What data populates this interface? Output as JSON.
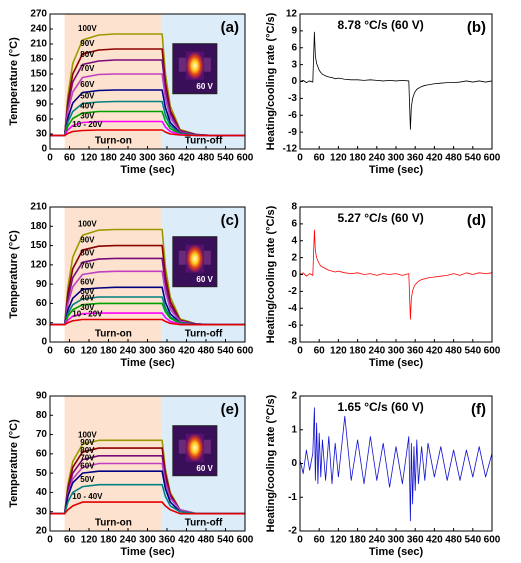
{
  "chart_data": [
    {
      "type": "line",
      "panel_label": "(a)",
      "xlabel": "Time (sec)",
      "ylabel": "Temperature (°C)",
      "xlim": [
        0,
        600
      ],
      "xticks": [
        0,
        60,
        120,
        180,
        240,
        300,
        360,
        420,
        480,
        540,
        600
      ],
      "ylim": [
        0,
        270
      ],
      "yticks": [
        0,
        30,
        60,
        90,
        120,
        150,
        180,
        210,
        240,
        270
      ],
      "regions": [
        {
          "label": "Turn-on",
          "from": 45,
          "to": 345,
          "color": "#fde3cf"
        },
        {
          "label": "Turn-off",
          "from": 345,
          "to": 600,
          "color": "#dcecf8"
        }
      ],
      "inset_label": "60 V",
      "x": [
        0,
        45,
        55,
        70,
        100,
        150,
        200,
        300,
        345,
        355,
        370,
        400,
        450,
        500,
        600
      ],
      "series": [
        {
          "name": "100V",
          "color": "#9a9a00",
          "values": [
            27,
            27,
            106,
            171,
            218,
            228,
            230,
            230,
            230,
            151,
            86,
            39,
            29,
            27,
            27
          ]
        },
        {
          "name": "90V",
          "color": "#8b0000",
          "values": [
            27,
            27,
            94,
            150,
            190,
            198,
            200,
            200,
            200,
            133,
            77,
            37,
            29,
            27,
            27
          ]
        },
        {
          "name": "80V",
          "color": "#7a0a7a",
          "values": [
            27,
            27,
            86,
            134,
            169,
            176,
            178,
            178,
            178,
            119,
            71,
            36,
            29,
            27,
            27
          ]
        },
        {
          "name": "70V",
          "color": "#c040c0",
          "values": [
            27,
            27,
            75,
            114,
            143,
            149,
            150,
            150,
            150,
            102,
            63,
            34,
            28,
            27,
            27
          ]
        },
        {
          "name": "60V",
          "color": "#000080",
          "values": [
            27,
            27,
            62,
            92,
            113,
            117,
            118,
            118,
            118,
            83,
            53,
            32,
            28,
            27,
            27
          ]
        },
        {
          "name": "50V",
          "color": "#008080",
          "values": [
            27,
            27,
            54,
            75,
            91,
            94,
            95,
            95,
            95,
            68,
            47,
            31,
            28,
            27,
            27
          ]
        },
        {
          "name": "40V",
          "color": "#00a000",
          "values": [
            27,
            27,
            46,
            61,
            72,
            75,
            75,
            75,
            75,
            56,
            41,
            30,
            27,
            27,
            27
          ]
        },
        {
          "name": "30V",
          "color": "#ff00ff",
          "values": [
            27,
            27,
            38,
            47,
            53,
            55,
            55,
            55,
            55,
            44,
            35,
            29,
            27,
            27,
            27
          ]
        },
        {
          "name": "10 - 20V",
          "color": "#e00000",
          "values": [
            27,
            27,
            31,
            35,
            37,
            38,
            38,
            38,
            38,
            34,
            30,
            28,
            27,
            27,
            27
          ]
        }
      ]
    },
    {
      "type": "line",
      "panel_label": "(b)",
      "xlabel": "Time (sec)",
      "ylabel": "Heating/cooling rate (°C/s)",
      "annotation": "8.78 °C/s (60 V)",
      "xlim": [
        0,
        600
      ],
      "xticks": [
        0,
        60,
        120,
        180,
        240,
        300,
        360,
        420,
        480,
        540,
        600
      ],
      "ylim": [
        -12,
        12
      ],
      "yticks": [
        -12,
        -9,
        -6,
        -3,
        0,
        3,
        6,
        9,
        12
      ],
      "x": [
        0,
        10,
        20,
        30,
        40,
        45,
        48,
        52,
        56,
        60,
        65,
        70,
        80,
        90,
        100,
        110,
        120,
        140,
        160,
        180,
        200,
        220,
        240,
        260,
        280,
        300,
        320,
        340,
        345,
        348,
        352,
        356,
        360,
        365,
        370,
        380,
        390,
        400,
        420,
        440,
        460,
        480,
        500,
        520,
        540,
        560,
        580,
        600
      ],
      "series": [
        {
          "color": "#000000",
          "values": [
            0,
            0.2,
            -0.2,
            0.1,
            -0.1,
            8.78,
            4.5,
            3.2,
            2.6,
            2.0,
            1.6,
            1.3,
            1.0,
            0.8,
            0.7,
            0.5,
            0.6,
            0.4,
            0.3,
            0.3,
            0.2,
            0.3,
            0.2,
            0.1,
            0.2,
            0.1,
            0.2,
            0.1,
            -8.5,
            -4.5,
            -3.0,
            -2.3,
            -1.8,
            -1.4,
            -1.2,
            -0.9,
            -0.7,
            -0.6,
            -0.4,
            -0.3,
            -0.2,
            -0.2,
            -0.1,
            0.1,
            -0.1,
            0.1,
            -0.1,
            0.1
          ]
        }
      ]
    },
    {
      "type": "line",
      "panel_label": "(c)",
      "xlabel": "Time (sec)",
      "ylabel": "Temperature (°C)",
      "xlim": [
        0,
        600
      ],
      "xticks": [
        0,
        60,
        120,
        180,
        240,
        300,
        360,
        420,
        480,
        540,
        600
      ],
      "ylim": [
        0,
        210
      ],
      "yticks": [
        0,
        30,
        60,
        90,
        120,
        150,
        180,
        210
      ],
      "regions": [
        {
          "label": "Turn-on",
          "from": 45,
          "to": 345,
          "color": "#fde3cf"
        },
        {
          "label": "Turn-off",
          "from": 345,
          "to": 600,
          "color": "#dcecf8"
        }
      ],
      "inset_label": "60 V",
      "x": [
        0,
        45,
        55,
        70,
        100,
        150,
        200,
        300,
        345,
        355,
        370,
        400,
        450,
        500,
        600
      ],
      "series": [
        {
          "name": "100V",
          "color": "#9a9a00",
          "values": [
            27,
            27,
            85,
            132,
            166,
            174,
            175,
            175,
            175,
            117,
            70,
            36,
            28,
            27,
            27
          ]
        },
        {
          "name": "90V",
          "color": "#8b0000",
          "values": [
            27,
            27,
            75,
            114,
            143,
            149,
            150,
            150,
            150,
            102,
            63,
            34,
            28,
            27,
            27
          ]
        },
        {
          "name": "80V",
          "color": "#7a0a7a",
          "values": [
            27,
            27,
            67,
            100,
            124,
            129,
            130,
            130,
            130,
            90,
            57,
            33,
            28,
            27,
            27
          ]
        },
        {
          "name": "70V",
          "color": "#c040c0",
          "values": [
            27,
            27,
            59,
            86,
            105,
            109,
            110,
            110,
            110,
            78,
            51,
            32,
            28,
            27,
            27
          ]
        },
        {
          "name": "60V",
          "color": "#000080",
          "values": [
            27,
            27,
            50,
            68,
            82,
            84,
            85,
            85,
            85,
            62,
            44,
            30,
            28,
            27,
            27
          ]
        },
        {
          "name": "50V",
          "color": "#008080",
          "values": [
            27,
            27,
            44,
            58,
            67,
            70,
            70,
            70,
            70,
            53,
            39,
            30,
            27,
            27,
            27
          ]
        },
        {
          "name": "40V",
          "color": "#00a000",
          "values": [
            27,
            27,
            40,
            50,
            58,
            60,
            60,
            60,
            60,
            47,
            37,
            29,
            27,
            27,
            27
          ]
        },
        {
          "name": "30V",
          "color": "#ff00ff",
          "values": [
            27,
            27,
            34,
            40,
            44,
            45,
            45,
            45,
            45,
            38,
            32,
            28,
            27,
            27,
            27
          ]
        },
        {
          "name": "10 - 20V",
          "color": "#e00000",
          "values": [
            27,
            27,
            30,
            33,
            35,
            35,
            35,
            35,
            35,
            32,
            29,
            27,
            27,
            27,
            27
          ]
        }
      ]
    },
    {
      "type": "line",
      "panel_label": "(d)",
      "xlabel": "Time (sec)",
      "ylabel": "Heating/cooling rate (°C/s)",
      "annotation": "5.27 °C/s (60 V)",
      "xlim": [
        0,
        600
      ],
      "xticks": [
        0,
        60,
        120,
        180,
        240,
        300,
        360,
        420,
        480,
        540,
        600
      ],
      "ylim": [
        -8,
        8
      ],
      "yticks": [
        -8,
        -6,
        -4,
        -2,
        0,
        2,
        4,
        6,
        8
      ],
      "x": [
        0,
        10,
        20,
        30,
        40,
        45,
        48,
        52,
        56,
        60,
        65,
        70,
        80,
        90,
        100,
        110,
        120,
        140,
        160,
        180,
        200,
        220,
        240,
        260,
        280,
        300,
        320,
        340,
        345,
        348,
        352,
        356,
        360,
        365,
        370,
        380,
        390,
        400,
        420,
        440,
        460,
        480,
        500,
        520,
        540,
        560,
        580,
        600
      ],
      "series": [
        {
          "color": "#ff0000",
          "values": [
            0,
            0.2,
            -0.2,
            0.1,
            -0.1,
            5.27,
            2.8,
            2.0,
            1.6,
            1.3,
            1.0,
            0.9,
            0.7,
            0.5,
            0.4,
            0.3,
            0.4,
            0.2,
            0.1,
            0.2,
            0.0,
            0.1,
            -0.1,
            0.1,
            0.0,
            0.1,
            -0.1,
            0.1,
            -5.3,
            -2.8,
            -1.9,
            -1.5,
            -1.2,
            -1.0,
            -0.8,
            -0.6,
            -0.5,
            -0.4,
            -0.3,
            -0.2,
            -0.1,
            0.1,
            -0.1,
            0.2,
            0.0,
            0.2,
            0.1,
            0.2
          ]
        }
      ]
    },
    {
      "type": "line",
      "panel_label": "(e)",
      "xlabel": "Time (sec)",
      "ylabel": "Temperature (°C)",
      "xlim": [
        0,
        600
      ],
      "xticks": [
        0,
        60,
        120,
        180,
        240,
        300,
        360,
        420,
        480,
        540,
        600
      ],
      "ylim": [
        20,
        90
      ],
      "yticks": [
        20,
        30,
        40,
        50,
        60,
        70,
        80,
        90
      ],
      "regions": [
        {
          "label": "Turn-on",
          "from": 45,
          "to": 345,
          "color": "#fde3cf"
        },
        {
          "label": "Turn-off",
          "from": 345,
          "to": 600,
          "color": "#dcecf8"
        }
      ],
      "inset_label": "60 V",
      "x": [
        0,
        45,
        55,
        70,
        100,
        150,
        200,
        300,
        345,
        355,
        370,
        400,
        450,
        500,
        600
      ],
      "series": [
        {
          "name": "100V",
          "color": "#9a9a00",
          "values": [
            29,
            29,
            44,
            56,
            65,
            67,
            67,
            67,
            67,
            52,
            40,
            31,
            29,
            29,
            29
          ]
        },
        {
          "name": "90V",
          "color": "#8b0000",
          "values": [
            29,
            29,
            42,
            53,
            61,
            63,
            63,
            63,
            63,
            50,
            39,
            31,
            29,
            29,
            29
          ]
        },
        {
          "name": "80V",
          "color": "#7a0a7a",
          "values": [
            29,
            29,
            41,
            50,
            57,
            59,
            59,
            59,
            59,
            47,
            38,
            31,
            29,
            29,
            29
          ]
        },
        {
          "name": "70V",
          "color": "#c040c0",
          "values": [
            29,
            29,
            39,
            47,
            53,
            55,
            55,
            55,
            55,
            45,
            37,
            31,
            29,
            29,
            29
          ]
        },
        {
          "name": "60V",
          "color": "#000080",
          "values": [
            29,
            29,
            38,
            45,
            50,
            51,
            51,
            51,
            51,
            42,
            35,
            30,
            29,
            29,
            29
          ]
        },
        {
          "name": "50V",
          "color": "#008080",
          "values": [
            29,
            29,
            35,
            40,
            43,
            44,
            44,
            44,
            44,
            38,
            33,
            30,
            29,
            29,
            29
          ]
        },
        {
          "name": "10 - 40V",
          "color": "#e00000",
          "values": [
            29,
            29,
            31,
            33,
            35,
            35,
            35,
            35,
            35,
            33,
            31,
            29,
            29,
            29,
            29
          ]
        }
      ]
    },
    {
      "type": "line",
      "panel_label": "(f)",
      "xlabel": "Time (sec)",
      "ylabel": "Heating/cooling rate (°C/s)",
      "annotation": "1.65 °C/s (60 V)",
      "xlim": [
        0,
        600
      ],
      "xticks": [
        0,
        60,
        120,
        180,
        240,
        300,
        360,
        420,
        480,
        540,
        600
      ],
      "ylim": [
        -2,
        2
      ],
      "yticks": [
        -2,
        -1,
        0,
        1,
        2
      ],
      "x": [
        0,
        10,
        20,
        30,
        40,
        45,
        48,
        52,
        56,
        60,
        65,
        70,
        80,
        90,
        100,
        110,
        120,
        140,
        160,
        180,
        200,
        220,
        240,
        260,
        280,
        300,
        320,
        340,
        345,
        348,
        352,
        356,
        360,
        365,
        370,
        380,
        390,
        400,
        420,
        440,
        460,
        480,
        500,
        520,
        540,
        560,
        580,
        600
      ],
      "series": [
        {
          "color": "#1010d0",
          "values": [
            0.1,
            -0.3,
            0.4,
            -0.2,
            0.3,
            1.65,
            -0.5,
            1.2,
            -0.6,
            0.9,
            -0.4,
            0.7,
            -0.5,
            0.8,
            -0.6,
            0.6,
            -0.4,
            1.4,
            -0.5,
            0.7,
            -0.6,
            0.8,
            -0.5,
            0.6,
            -0.7,
            0.5,
            -0.6,
            0.8,
            -1.7,
            0.6,
            -1.2,
            0.5,
            -0.8,
            0.7,
            -0.6,
            0.5,
            -0.5,
            0.6,
            -0.4,
            0.5,
            -0.5,
            0.4,
            -0.5,
            0.4,
            -0.4,
            0.5,
            -0.4,
            0.3
          ]
        }
      ]
    }
  ]
}
